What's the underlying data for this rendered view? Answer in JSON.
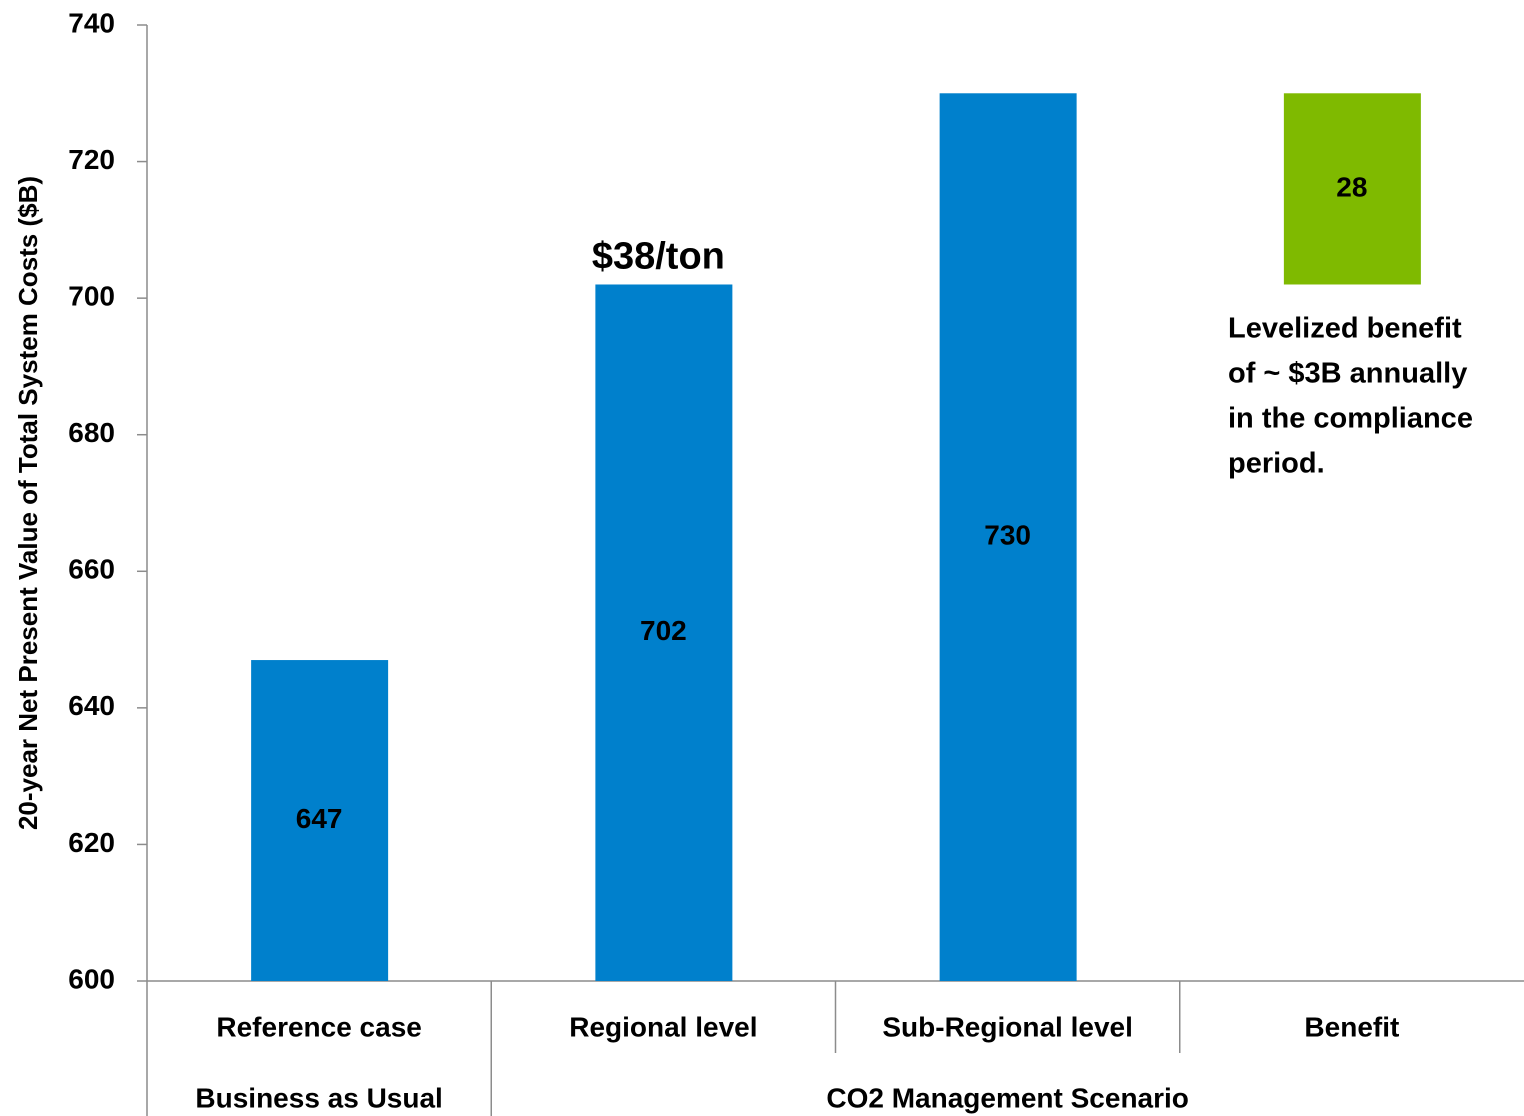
{
  "chart_data": {
    "type": "waterfall",
    "y_label": "20-year Net Present Value of Total System Costs ($B)",
    "categories": [
      "Reference case",
      "Regional level",
      "Sub-Regional level",
      "Benefit"
    ],
    "groups": [
      {
        "label": "Business as Usual",
        "span": 1
      },
      {
        "label": "CO2 Management Scenario",
        "span": 3
      }
    ],
    "values": [
      647,
      702,
      730,
      28
    ],
    "colors": [
      "#0080cc",
      "#0080cc",
      "#0080cc",
      "#7fba00"
    ],
    "ylim": [
      600,
      740
    ],
    "yticks": [
      600,
      620,
      640,
      660,
      680,
      700,
      720,
      740
    ],
    "annotation": "$38/ton",
    "note_lines": [
      "Levelized benefit",
      "of ~ $3B annually",
      "in the compliance",
      "period."
    ]
  }
}
